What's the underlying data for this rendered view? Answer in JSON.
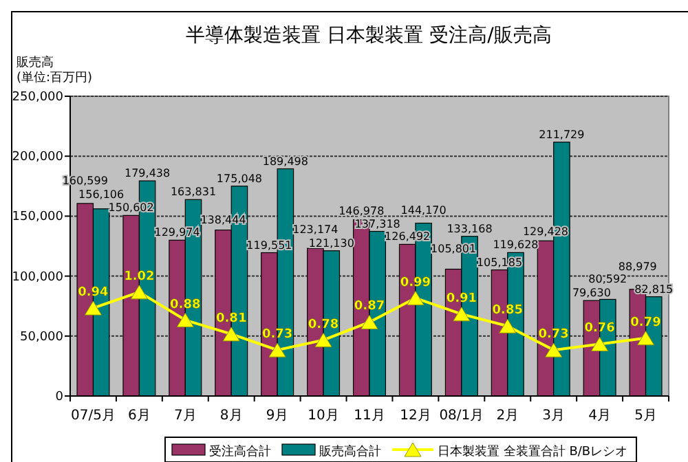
{
  "chart_data": {
    "type": "bar",
    "title": "半導体製造装置 日本製装置 受注高/販売高",
    "ylabel": "販売高\n(単位:百万円)",
    "categories": [
      "07/5月",
      "6月",
      "7月",
      "8月",
      "9月",
      "10月",
      "11月",
      "12月",
      "08/1月",
      "2月",
      "3月",
      "4月",
      "5月"
    ],
    "series": [
      {
        "name": "受注高合計",
        "color": "#993366",
        "values": [
          160599,
          150602,
          129974,
          138444,
          119551,
          123174,
          146978,
          126492,
          105801,
          105185,
          129428,
          79630,
          88979
        ],
        "value_labels": [
          "160,599",
          "150,602",
          "129,974",
          "138,444",
          "119,551",
          "123,174",
          "146,978",
          "126,492",
          "105,801",
          "105,185",
          "129,428",
          "79,630",
          "88,979"
        ]
      },
      {
        "name": "販売高合計",
        "color": "#008080",
        "values": [
          156106,
          179438,
          163831,
          175048,
          189498,
          121130,
          137318,
          144170,
          133168,
          119628,
          211729,
          80592,
          82815
        ],
        "value_labels": [
          "156,106",
          "179,438",
          "163,831",
          "175,048",
          "189,498",
          "121,130",
          "137,318",
          "144,170",
          "133,168",
          "119,628",
          "211,729",
          "80,592",
          "82,815"
        ]
      },
      {
        "name": "日本製装置 全装置合計 B/Bレシオ",
        "type": "line",
        "axis": "y2",
        "color": "#ffff00",
        "marker": "triangle",
        "values": [
          0.94,
          1.02,
          0.88,
          0.81,
          0.73,
          0.78,
          0.87,
          0.99,
          0.91,
          0.85,
          0.73,
          0.76,
          0.79
        ],
        "value_labels": [
          "0.94",
          "1.02",
          "0.88",
          "0.81",
          "0.73",
          "0.78",
          "0.87",
          "0.99",
          "0.91",
          "0.85",
          "0.73",
          "0.76",
          "0.79"
        ]
      }
    ],
    "ylim": [
      0,
      250000
    ],
    "yticks": [
      {
        "value": 0,
        "label": "0"
      },
      {
        "value": 50000,
        "label": "50,000"
      },
      {
        "value": 100000,
        "label": "100,000"
      },
      {
        "value": 150000,
        "label": "150,000"
      },
      {
        "value": 200000,
        "label": "200,000"
      },
      {
        "value": 250000,
        "label": "250,000"
      }
    ],
    "y2lim": [
      0.5,
      2.0
    ],
    "tick_labels": "xy",
    "grid": "y",
    "legend": "bottom"
  }
}
